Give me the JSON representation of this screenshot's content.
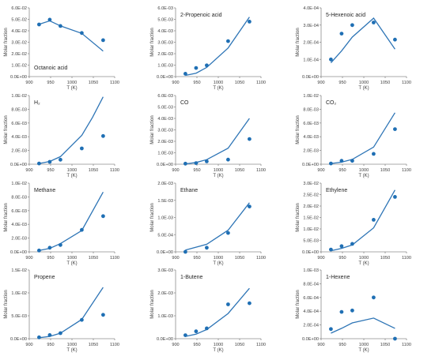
{
  "chart_data": [
    {
      "type": "scatter",
      "title": "Octanoic acid",
      "xlabel": "T (K)",
      "ylabel": "Molar fraction",
      "xlim": [
        900,
        1100
      ],
      "ylim": [
        0,
        0.06
      ],
      "x_ticks": [
        "900",
        "950",
        "1000",
        "1050",
        "1100"
      ],
      "y_ticks": [
        "0.0E+00",
        "1.0E-02",
        "2.0E-02",
        "3.0E-02",
        "4.0E-02",
        "5.0E-02",
        "6.0E-02"
      ],
      "series": [
        {
          "kind": "line",
          "x": [
            923,
            948,
            973,
            1023,
            1073
          ],
          "y": [
            0.0457,
            0.0487,
            0.0443,
            0.0377,
            0.0223
          ]
        },
        {
          "kind": "points",
          "x": [
            923,
            948,
            973,
            1023,
            1073
          ],
          "y": [
            0.0455,
            0.0497,
            0.0442,
            0.0381,
            0.0318
          ]
        }
      ]
    },
    {
      "type": "scatter",
      "title": "2-Propenoic acid",
      "xlabel": "T (K)",
      "ylabel": "Molar fraction",
      "xlim": [
        900,
        1100
      ],
      "ylim": [
        0,
        0.006
      ],
      "x_ticks": [
        "900",
        "950",
        "1000",
        "1050",
        "1100"
      ],
      "y_ticks": [
        "0.0E+00",
        "1.0E-03",
        "2.0E-03",
        "3.0E-03",
        "4.0E-03",
        "5.0E-03",
        "6.0E-03"
      ],
      "series": [
        {
          "kind": "line",
          "x": [
            923,
            948,
            973,
            1023,
            1073
          ],
          "y": [
            0.0001,
            0.0003,
            0.0008,
            0.0025,
            0.0052
          ]
        },
        {
          "kind": "points",
          "x": [
            923,
            948,
            973,
            1023,
            1073
          ],
          "y": [
            0.00025,
            0.00075,
            0.00098,
            0.0031,
            0.0048
          ]
        }
      ]
    },
    {
      "type": "scatter",
      "title": "5-Hexenoic acid",
      "xlabel": "T (K)",
      "ylabel": "Molar fraction",
      "xlim": [
        900,
        1100
      ],
      "ylim": [
        0,
        0.0004
      ],
      "x_ticks": [
        "900",
        "950",
        "1000",
        "1050",
        "1100"
      ],
      "y_ticks": [
        "0.0E+00",
        "1.0E-04",
        "2.0E-04",
        "3.0E-04",
        "4.0E-04"
      ],
      "series": [
        {
          "kind": "line",
          "x": [
            923,
            948,
            973,
            1023,
            1073
          ],
          "y": [
            8e-05,
            0.00015,
            0.00023,
            0.00034,
            0.00016
          ]
        },
        {
          "kind": "points",
          "x": [
            923,
            948,
            973,
            1023,
            1073
          ],
          "y": [
            0.0001,
            0.00025,
            0.0003,
            0.000315,
            0.000215
          ]
        }
      ]
    },
    {
      "type": "scatter",
      "title": "H₂",
      "xlabel": "T (K)",
      "ylabel": "Molar fraction",
      "xlim": [
        900,
        1100
      ],
      "ylim": [
        0,
        0.01
      ],
      "x_ticks": [
        "900",
        "950",
        "1000",
        "1050",
        "1100"
      ],
      "y_ticks": [
        "0.0E+00",
        "2.0E-03",
        "4.0E-03",
        "6.0E-03",
        "8.0E-03",
        "1.0E-02"
      ],
      "series": [
        {
          "kind": "line",
          "x": [
            923,
            948,
            973,
            1023,
            1048,
            1073
          ],
          "y": [
            0.0001,
            0.0004,
            0.0011,
            0.0042,
            0.0068,
            0.0098
          ]
        },
        {
          "kind": "points",
          "x": [
            923,
            948,
            973,
            1023,
            1073
          ],
          "y": [
            0.0001,
            0.00035,
            0.00065,
            0.0023,
            0.0041
          ]
        }
      ]
    },
    {
      "type": "scatter",
      "title": "CO",
      "xlabel": "T (K)",
      "ylabel": "Molar fraction",
      "xlim": [
        900,
        1100
      ],
      "ylim": [
        0,
        0.006
      ],
      "x_ticks": [
        "900",
        "950",
        "1000",
        "1050",
        "1100"
      ],
      "y_ticks": [
        "0.0E+00",
        "1.0E-03",
        "2.0E-03",
        "3.0E-03",
        "4.0E-03",
        "5.0E-03",
        "6.0E-03"
      ],
      "series": [
        {
          "kind": "line",
          "x": [
            923,
            948,
            973,
            1023,
            1073
          ],
          "y": [
            3e-05,
            0.00015,
            0.0004,
            0.0014,
            0.004
          ]
        },
        {
          "kind": "points",
          "x": [
            923,
            948,
            973,
            1023,
            1073
          ],
          "y": [
            5e-05,
            0.0001,
            0.00025,
            0.0004,
            0.0022
          ]
        }
      ]
    },
    {
      "type": "scatter",
      "title": "CO₂",
      "xlabel": "T (K)",
      "ylabel": "Molar fraction",
      "xlim": [
        900,
        1100
      ],
      "ylim": [
        0,
        0.01
      ],
      "x_ticks": [
        "900",
        "950",
        "1000",
        "1050",
        "1100"
      ],
      "y_ticks": [
        "0.0E+00",
        "2.0E-03",
        "4.0E-03",
        "6.0E-03",
        "8.0E-03",
        "1.0E-02"
      ],
      "series": [
        {
          "kind": "line",
          "x": [
            923,
            948,
            973,
            1023,
            1073
          ],
          "y": [
            0.0001,
            0.0003,
            0.0007,
            0.0025,
            0.0075
          ]
        },
        {
          "kind": "points",
          "x": [
            923,
            948,
            973,
            1023,
            1073
          ],
          "y": [
            0.0001,
            0.0005,
            0.0005,
            0.0015,
            0.0051
          ]
        }
      ]
    },
    {
      "type": "scatter",
      "title": "Methane",
      "xlabel": "T (K)",
      "ylabel": "Molar fraction",
      "xlim": [
        900,
        1100
      ],
      "ylim": [
        0,
        0.01
      ],
      "x_ticks": [
        "900",
        "950",
        "1000",
        "1050",
        "1100"
      ],
      "y_ticks": [
        "0.0E+00",
        "2.0E-03",
        "4.0E-03",
        "6.0E-03",
        "8.0E-03",
        "1.0E-02"
      ],
      "series": [
        {
          "kind": "line",
          "x": [
            923,
            948,
            973,
            1023,
            1073
          ],
          "y": [
            0.0002,
            0.0005,
            0.0012,
            0.0031,
            0.0087
          ]
        },
        {
          "kind": "points",
          "x": [
            923,
            948,
            973,
            1023,
            1073
          ],
          "y": [
            0.0002,
            0.0006,
            0.001,
            0.0032,
            0.0052
          ]
        }
      ]
    },
    {
      "type": "scatter",
      "title": "Ethane",
      "xlabel": "T (K)",
      "ylabel": "Molar fraction",
      "xlim": [
        900,
        1100
      ],
      "ylim": [
        0,
        0.002
      ],
      "x_ticks": [
        "900",
        "950",
        "1000",
        "1050",
        "1100"
      ],
      "y_ticks": [
        "0.0E+00",
        "5.0E-04",
        "1.0E-03",
        "1.5E-03",
        "2.0E-03"
      ],
      "series": [
        {
          "kind": "line",
          "x": [
            923,
            973,
            1023,
            1073
          ],
          "y": [
            5e-05,
            0.00022,
            0.00063,
            0.00143
          ]
        },
        {
          "kind": "points",
          "x": [
            923,
            973,
            1023,
            1073
          ],
          "y": [
            0.0,
            0.00012,
            0.00055,
            0.00132
          ]
        }
      ]
    },
    {
      "type": "scatter",
      "title": "Ethylene",
      "xlabel": "T (K)",
      "ylabel": "Molar fraction",
      "xlim": [
        900,
        1100
      ],
      "ylim": [
        0,
        0.03
      ],
      "x_ticks": [
        "900",
        "950",
        "1000",
        "1050",
        "1100"
      ],
      "y_ticks": [
        "0.0E+00",
        "5.0E-03",
        "1.0E-02",
        "1.5E-02",
        "2.0E-02",
        "2.5E-02",
        "3.0E-02"
      ],
      "series": [
        {
          "kind": "line",
          "x": [
            923,
            948,
            973,
            1023,
            1073
          ],
          "y": [
            0.0005,
            0.0015,
            0.003,
            0.0105,
            0.027
          ]
        },
        {
          "kind": "points",
          "x": [
            923,
            948,
            973,
            1023,
            1073
          ],
          "y": [
            0.001,
            0.0025,
            0.0035,
            0.014,
            0.024
          ]
        }
      ]
    },
    {
      "type": "scatter",
      "title": "Propene",
      "xlabel": "T (K)",
      "ylabel": "Molar fraction",
      "xlim": [
        900,
        1100
      ],
      "ylim": [
        0,
        0.015
      ],
      "x_ticks": [
        "900",
        "950",
        "1000",
        "1050",
        "1100"
      ],
      "y_ticks": [
        "0.0E+00",
        "5.0E-03",
        "1.0E-02",
        "1.5E-02"
      ],
      "series": [
        {
          "kind": "line",
          "x": [
            923,
            948,
            973,
            1023,
            1073
          ],
          "y": [
            0.0002,
            0.0005,
            0.0012,
            0.0042,
            0.0112
          ]
        },
        {
          "kind": "points",
          "x": [
            923,
            948,
            973,
            1023,
            1073
          ],
          "y": [
            0.0003,
            0.0008,
            0.0012,
            0.0041,
            0.0052
          ]
        }
      ]
    },
    {
      "type": "scatter",
      "title": "1-Butene",
      "xlabel": "T (K)",
      "ylabel": "Molar fraction",
      "xlim": [
        900,
        1100
      ],
      "ylim": [
        0,
        0.003
      ],
      "x_ticks": [
        "900",
        "950",
        "1000",
        "1050",
        "1100"
      ],
      "y_ticks": [
        "0.0E+00",
        "1.0E-03",
        "2.0E-03",
        "3.0E-03"
      ],
      "series": [
        {
          "kind": "line",
          "x": [
            923,
            948,
            973,
            1023,
            1073
          ],
          "y": [
            0.0001,
            0.0002,
            0.0004,
            0.0011,
            0.0022
          ]
        },
        {
          "kind": "points",
          "x": [
            923,
            948,
            973,
            1023,
            1073
          ],
          "y": [
            0.00015,
            0.00032,
            0.00045,
            0.0015,
            0.00155
          ]
        }
      ]
    },
    {
      "type": "scatter",
      "title": "1-Hexene",
      "xlabel": "T (K)",
      "ylabel": "Molar fraction",
      "xlim": [
        900,
        1100
      ],
      "ylim": [
        0,
        0.001
      ],
      "x_ticks": [
        "900",
        "950",
        "1000",
        "1050",
        "1100"
      ],
      "y_ticks": [
        "0.0E+00",
        "2.0E-04",
        "4.0E-04",
        "6.0E-04",
        "8.0E-04",
        "1.0E-03"
      ],
      "series": [
        {
          "kind": "line",
          "x": [
            923,
            948,
            973,
            1023,
            1073
          ],
          "y": [
            8e-05,
            0.00015,
            0.00023,
            0.0003,
            0.00015
          ]
        },
        {
          "kind": "points",
          "x": [
            923,
            948,
            973,
            1023,
            1073
          ],
          "y": [
            0.00014,
            0.00039,
            0.00041,
            0.0006,
            0.0
          ]
        }
      ]
    }
  ],
  "colors": {
    "line": "#2e75b6",
    "marker": "#1f6fb4",
    "axis": "#8c8c8c",
    "text": "#404040"
  }
}
